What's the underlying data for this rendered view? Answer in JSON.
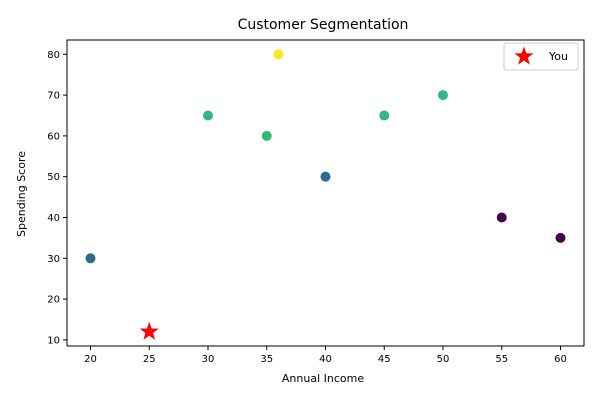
{
  "chart_data": {
    "type": "scatter",
    "title": "Customer Segmentation",
    "xlabel": "Annual Income",
    "ylabel": "Spending Score",
    "xlim": [
      18,
      62
    ],
    "ylim": [
      8.5,
      83.5
    ],
    "x_ticks": [
      20,
      25,
      30,
      35,
      40,
      45,
      50,
      55,
      60
    ],
    "y_ticks": [
      10,
      20,
      30,
      40,
      50,
      60,
      70,
      80
    ],
    "grid": false,
    "legend_position": "top-right",
    "cluster_colors": [
      "#440154",
      "#31688e",
      "#35b779",
      "#fde725"
    ],
    "points": [
      {
        "x": 20,
        "y": 30,
        "cluster": 1
      },
      {
        "x": 30,
        "y": 65,
        "cluster": 2
      },
      {
        "x": 35,
        "y": 60,
        "cluster": 2
      },
      {
        "x": 36,
        "y": 80,
        "cluster": 3
      },
      {
        "x": 40,
        "y": 50,
        "cluster": 1
      },
      {
        "x": 45,
        "y": 65,
        "cluster": 2
      },
      {
        "x": 50,
        "y": 70,
        "cluster": 2
      },
      {
        "x": 55,
        "y": 40,
        "cluster": 0
      },
      {
        "x": 60,
        "y": 35,
        "cluster": 0
      }
    ],
    "highlight": {
      "name": "You",
      "x": 25,
      "y": 12,
      "color": "#ff0000",
      "marker": "star"
    }
  }
}
